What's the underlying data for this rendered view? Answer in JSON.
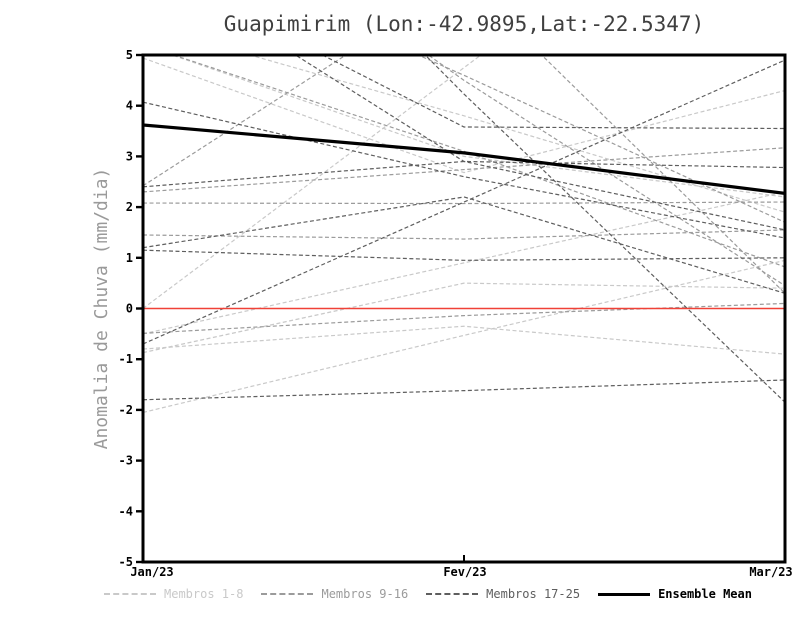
{
  "title": "Guapimirim (Lon:-42.9895,Lat:-22.5347)",
  "chart_data": {
    "type": "line",
    "title": "Guapimirim (Lon:-42.9895,Lat:-22.5347)",
    "xlabel": "",
    "ylabel": "Anomalia de Chuva (mm/dia)",
    "x_categories": [
      "Jan/23",
      "Fev/23",
      "Mar/23"
    ],
    "ylim": [
      -5,
      5
    ],
    "y_ticks": [
      5,
      4,
      3,
      2,
      1,
      0,
      -1,
      -2,
      -3,
      -4,
      -5
    ],
    "grid": false,
    "legend_position": "bottom",
    "zero_line": {
      "value": 0,
      "color": "#f04137"
    },
    "ensemble_mean": {
      "name": "Ensemble Mean",
      "color": "#000000",
      "values": [
        3.62,
        3.07,
        2.27
      ]
    },
    "member_groups": [
      {
        "name": "Membros 1-8",
        "color": "#c9c9c9",
        "members": [
          [
            4.94,
            2.68,
            4.3
          ],
          [
            0.0,
            4.75,
            9.5
          ],
          [
            -0.8,
            -0.35,
            -0.9
          ],
          [
            -0.87,
            0.5,
            0.4
          ],
          [
            -2.05,
            -0.53,
            0.95
          ],
          [
            5.2,
            3.0,
            2.2
          ],
          [
            5.6,
            3.8,
            1.9
          ],
          [
            -0.5,
            0.9,
            2.3
          ]
        ]
      },
      {
        "name": "Membros 9-16",
        "color": "#9b9b9b",
        "members": [
          [
            2.42,
            6.5,
            0.3
          ],
          [
            5.2,
            3.1,
            0.82
          ],
          [
            2.3,
            2.74,
            3.17
          ],
          [
            7.4,
            4.6,
            1.7
          ],
          [
            9.0,
            4.5,
            0.45
          ],
          [
            2.08,
            2.07,
            2.1
          ],
          [
            -0.49,
            -0.14,
            0.1
          ],
          [
            1.45,
            1.37,
            1.55
          ]
        ]
      },
      {
        "name": "Membros 17-25",
        "color": "#5e5e5e",
        "members": [
          [
            4.07,
            2.6,
            1.39
          ],
          [
            6.8,
            3.58,
            3.55
          ],
          [
            10.6,
            4.23,
            -1.85
          ],
          [
            1.15,
            0.95,
            1.0
          ],
          [
            -0.7,
            2.1,
            4.9
          ],
          [
            -1.8,
            -1.62,
            -1.41
          ],
          [
            2.4,
            2.9,
            2.78
          ],
          [
            6.9,
            2.9,
            1.55
          ],
          [
            1.2,
            2.2,
            0.3
          ]
        ]
      }
    ],
    "legend_items": [
      {
        "label": "Membros 1-8",
        "color": "#c9c9c9",
        "style": "dashed"
      },
      {
        "label": "Membros 9-16",
        "color": "#9b9b9b",
        "style": "dashed"
      },
      {
        "label": "Membros 17-25",
        "color": "#5e5e5e",
        "style": "dashed"
      },
      {
        "label": "Ensemble Mean",
        "color": "#000000",
        "style": "solid"
      }
    ]
  }
}
